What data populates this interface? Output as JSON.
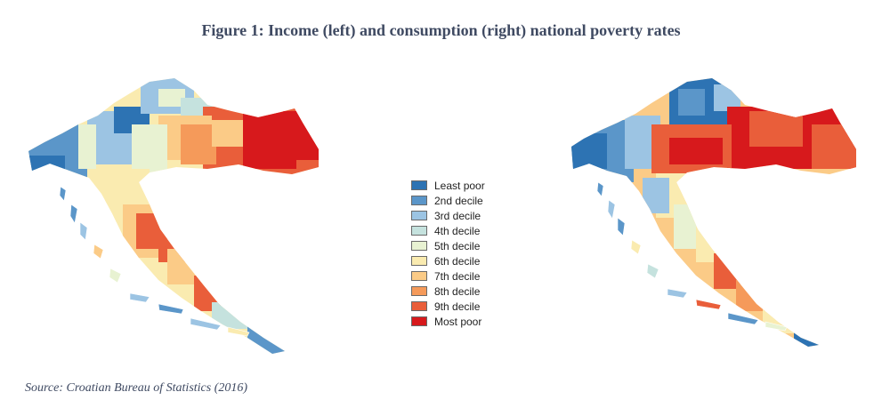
{
  "figure": {
    "title": "Figure 1: Income (left) and consumption (right) national poverty rates",
    "source": "Source: Croatian Bureau of Statistics (2016)"
  },
  "maps": [
    {
      "name": "income",
      "region": "Croatia",
      "position": "left"
    },
    {
      "name": "consumption",
      "region": "Croatia",
      "position": "right"
    }
  ],
  "legend": {
    "items": [
      {
        "label": "Least poor",
        "color": "#2d73b3"
      },
      {
        "label": "2nd decile",
        "color": "#5b96c9"
      },
      {
        "label": "3rd decile",
        "color": "#9cc4e3"
      },
      {
        "label": "4th decile",
        "color": "#c5e2de"
      },
      {
        "label": "5th decile",
        "color": "#e8f2d2"
      },
      {
        "label": "6th decile",
        "color": "#faebb0"
      },
      {
        "label": "7th decile",
        "color": "#fbcb87"
      },
      {
        "label": "8th decile",
        "color": "#f59a5a"
      },
      {
        "label": "9th decile",
        "color": "#e95e3a"
      },
      {
        "label": "Most poor",
        "color": "#d7191c"
      }
    ]
  }
}
